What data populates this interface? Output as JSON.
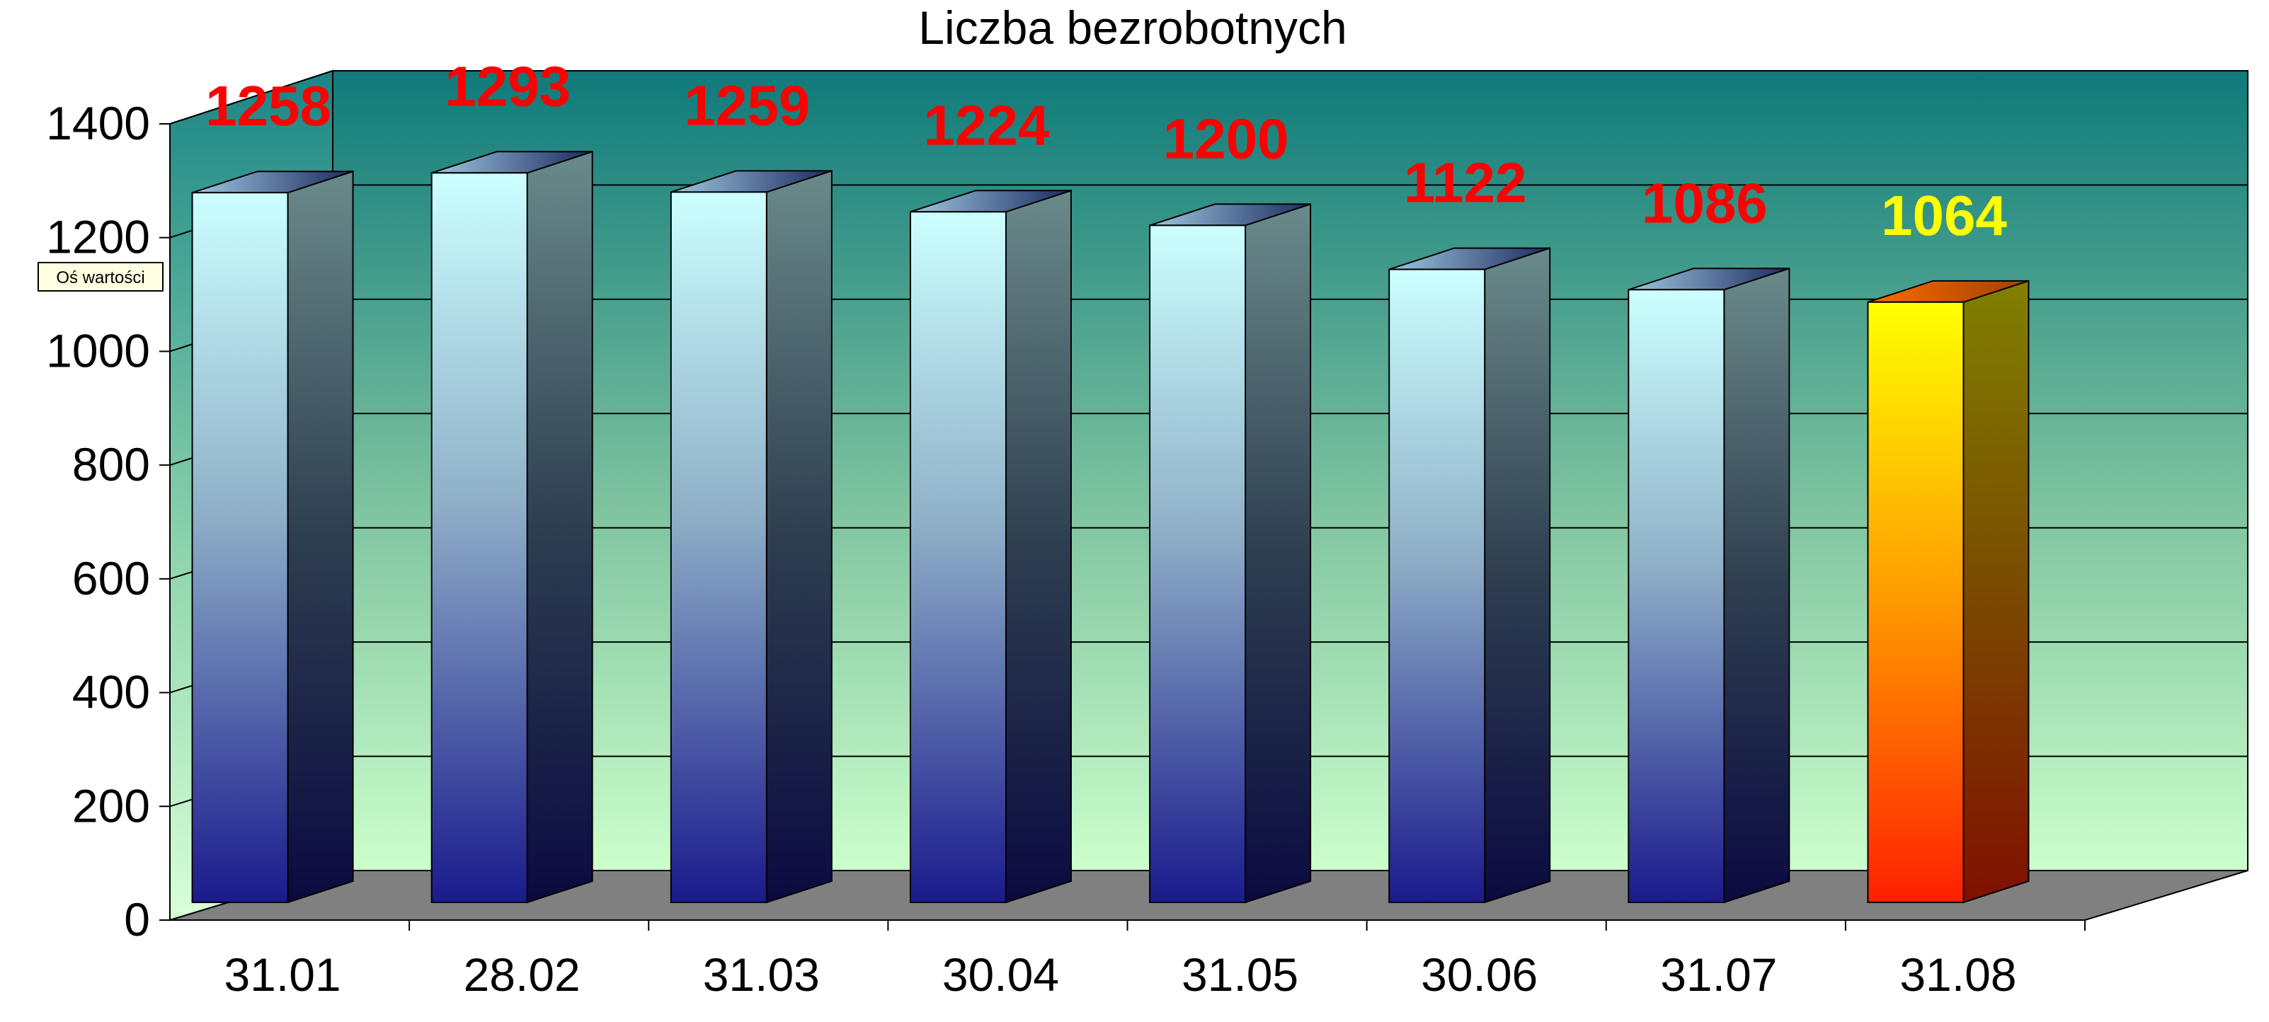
{
  "chart_data": {
    "type": "bar",
    "title": "Liczba bezrobotnych",
    "categories": [
      "31.01",
      "28.02",
      "31.03",
      "30.04",
      "31.05",
      "30.06",
      "31.07",
      "31.08"
    ],
    "values": [
      1258,
      1293,
      1259,
      1224,
      1200,
      1122,
      1086,
      1064
    ],
    "ylim": [
      0,
      1400
    ],
    "yticks": [
      "0",
      "200",
      "400",
      "600",
      "800",
      "1000",
      "1200",
      "1400"
    ],
    "grid": true,
    "legend": "none",
    "highlighted_category": "31.08",
    "colors": {
      "bar_top": "#ccffff",
      "bar_bottom": "#1a1a8c",
      "highlight_top": "#ffff00",
      "highlight_bottom": "#ff2000",
      "label": "#ff0000",
      "highlight_label": "#ffff00",
      "wall_top": "#0f7a7a",
      "wall_bottom": "#ccffcc",
      "floor": "#808080"
    }
  },
  "axis_tooltip": "Oś wartości"
}
